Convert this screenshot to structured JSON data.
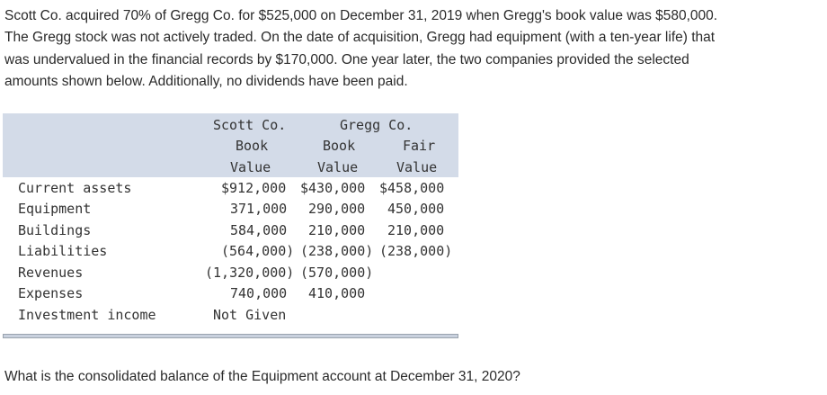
{
  "intro_lines": [
    "Scott Co. acquired 70% of Gregg Co. for $525,000 on December 31, 2019 when Gregg's book value was $580,000.",
    "The Gregg stock was not actively traded. On the date of acquisition, Gregg had equipment (with a ten-year life) that",
    "was undervalued in the financial records by $170,000. One year later, the two companies provided the selected",
    "amounts shown below. Additionally, no dividends have been paid."
  ],
  "table": {
    "header": {
      "scott_title": "Scott Co.",
      "gregg_title": "Gregg Co.",
      "scott_book": "Book",
      "gregg_book": "Book",
      "gregg_fair": "Fair",
      "scott_value": "Value",
      "gregg_book_value": "Value",
      "gregg_fair_value": "Value"
    },
    "rows": [
      {
        "label": "Current assets",
        "scott": "$912,000",
        "gregg_book": "$430,000",
        "gregg_fair": "$458,000"
      },
      {
        "label": "Equipment",
        "scott": "371,000",
        "gregg_book": "290,000",
        "gregg_fair": "450,000"
      },
      {
        "label": "Buildings",
        "scott": "584,000",
        "gregg_book": "210,000",
        "gregg_fair": "210,000"
      },
      {
        "label": "Liabilities",
        "scott": "(564,000)",
        "gregg_book": "(238,000)",
        "gregg_fair": "(238,000)"
      },
      {
        "label": "Revenues",
        "scott": "(1,320,000)",
        "gregg_book": "(570,000)",
        "gregg_fair": ""
      },
      {
        "label": "Expenses",
        "scott": "740,000",
        "gregg_book": "410,000",
        "gregg_fair": ""
      },
      {
        "label": "Investment income",
        "scott": "Not Given",
        "gregg_book": "",
        "gregg_fair": ""
      }
    ]
  },
  "question": "What is the consolidated balance of the Equipment account at December 31, 2020?"
}
